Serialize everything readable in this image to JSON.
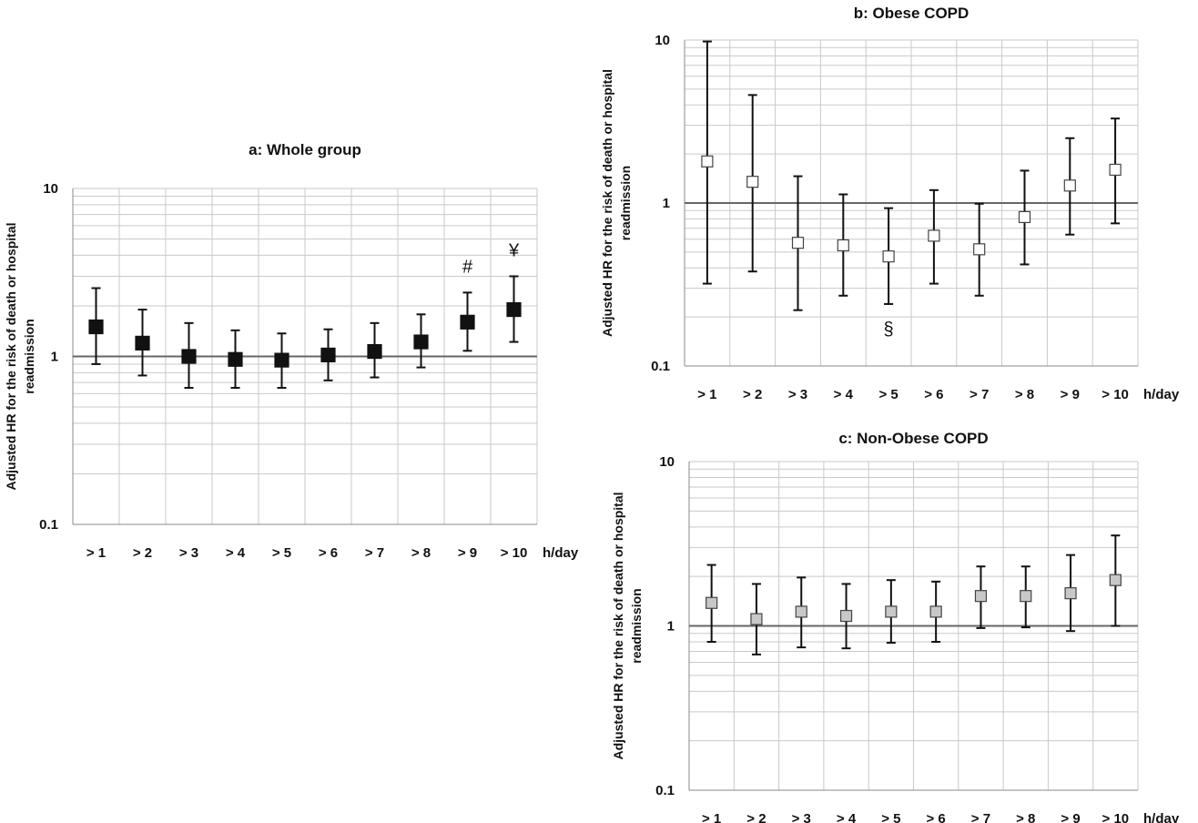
{
  "figure": {
    "x_unit": "h/day",
    "y_label_line1": "Adjusted HR for the risk of death or hospital",
    "y_label_line2": "readmission"
  },
  "chart_data": [
    {
      "id": "a",
      "type": "scatter",
      "title": "a: Whole group",
      "xlabel": "h/day",
      "ylabel": "Adjusted HR for the risk of death or hospital readmission",
      "y_scale": "log",
      "ylim": [
        0.1,
        10
      ],
      "y_ticks": [
        "10",
        "1",
        "0.1"
      ],
      "reference_line": 1,
      "grid": true,
      "marker_fill": "#111111",
      "categories": [
        "> 1",
        "> 2",
        "> 3",
        "> 4",
        "> 5",
        "> 6",
        "> 7",
        "> 8",
        "> 9",
        "> 10"
      ],
      "values": [
        1.5,
        1.2,
        1.0,
        0.96,
        0.95,
        1.02,
        1.07,
        1.22,
        1.6,
        1.9
      ],
      "lower": [
        0.9,
        0.77,
        0.65,
        0.65,
        0.65,
        0.72,
        0.75,
        0.86,
        1.08,
        1.22
      ],
      "upper": [
        2.55,
        1.9,
        1.58,
        1.43,
        1.37,
        1.45,
        1.58,
        1.78,
        2.4,
        3.0
      ],
      "annotations": [
        {
          "category": "> 9",
          "text": "#"
        },
        {
          "category": "> 10",
          "text": "¥"
        }
      ]
    },
    {
      "id": "b",
      "type": "scatter",
      "title": "b: Obese COPD",
      "xlabel": "h/day",
      "ylabel": "Adjusted HR for the risk of death or hospital readmission",
      "y_scale": "log",
      "ylim": [
        0.1,
        10
      ],
      "y_ticks": [
        "10",
        "1",
        "0.1"
      ],
      "reference_line": 1,
      "grid": true,
      "marker_fill": "#ffffff",
      "categories": [
        "> 1",
        "> 2",
        "> 3",
        "> 4",
        "> 5",
        "> 6",
        "> 7",
        "> 8",
        "> 9",
        "> 10"
      ],
      "values": [
        1.8,
        1.35,
        0.57,
        0.55,
        0.47,
        0.63,
        0.52,
        0.82,
        1.28,
        1.6
      ],
      "lower": [
        0.32,
        0.38,
        0.22,
        0.27,
        0.24,
        0.32,
        0.27,
        0.42,
        0.64,
        0.75
      ],
      "upper": [
        9.8,
        4.6,
        1.46,
        1.13,
        0.93,
        1.2,
        0.99,
        1.58,
        2.5,
        3.3
      ],
      "annotations": [
        {
          "category": "> 5",
          "text": "§"
        }
      ]
    },
    {
      "id": "c",
      "type": "scatter",
      "title": "c: Non-Obese  COPD",
      "xlabel": "h/day",
      "ylabel": "Adjusted HR for the risk of death or hospital readmission",
      "y_scale": "log",
      "ylim": [
        0.1,
        10
      ],
      "y_ticks": [
        "10",
        "1",
        "0.1"
      ],
      "reference_line": 1,
      "grid": true,
      "marker_fill": "#c8c8c8",
      "categories": [
        "> 1",
        "> 2",
        "> 3",
        "> 4",
        "> 5",
        "> 6",
        "> 7",
        "> 8",
        "> 9",
        "> 10"
      ],
      "values": [
        1.38,
        1.1,
        1.22,
        1.15,
        1.22,
        1.22,
        1.52,
        1.52,
        1.58,
        1.9
      ],
      "lower": [
        0.8,
        0.67,
        0.74,
        0.73,
        0.79,
        0.8,
        0.97,
        0.98,
        0.93,
        1.0
      ],
      "upper": [
        2.35,
        1.8,
        1.97,
        1.8,
        1.9,
        1.86,
        2.3,
        2.3,
        2.7,
        3.55
      ],
      "annotations": []
    }
  ]
}
